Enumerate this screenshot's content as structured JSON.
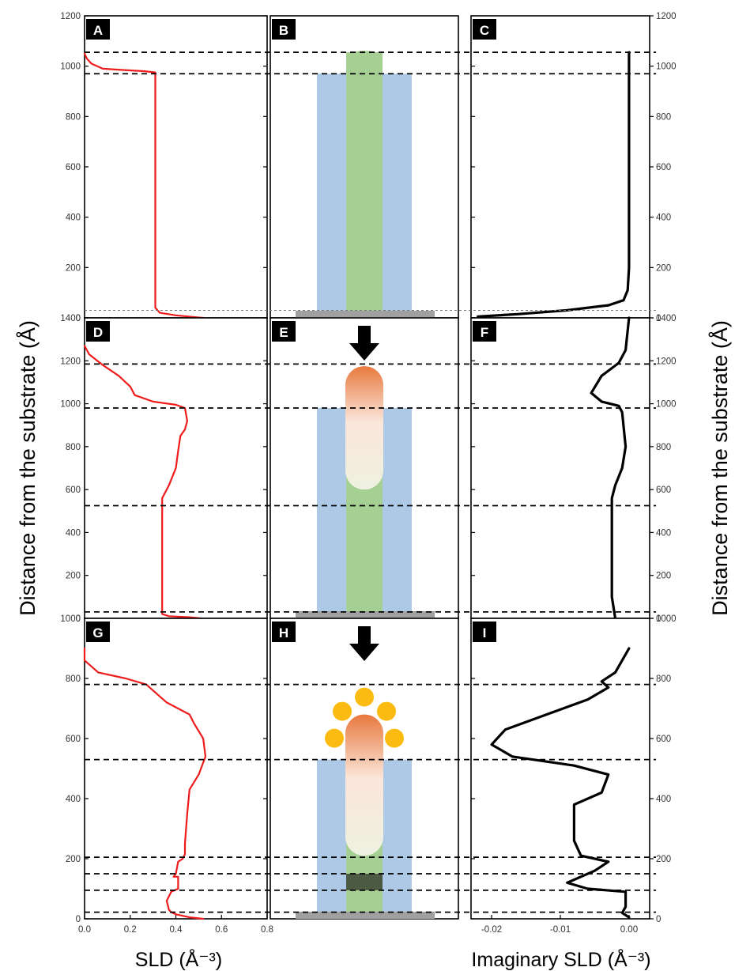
{
  "y_axis_title": "Distance from the substrate (Å)",
  "sld_axis_title": "SLD (Å⁻³)",
  "imag_sld_axis_title": "Imaginary SLD (Å⁻³)",
  "colors": {
    "sld_curve": "#ee1c1c",
    "imag_curve": "#000000",
    "membrane": "#adc9e6",
    "helix": "#a6cf94",
    "substrate": "#a0a0a0",
    "gold": "#fbbb10",
    "dark_band": "#4d5a43"
  },
  "icons": [
    "down-arrow-icon",
    "gold-nanoparticle-icon"
  ],
  "chart_data": [
    {
      "panel": "A",
      "type": "line",
      "ylim": [
        0,
        1200
      ],
      "xlim": [
        0,
        0.8
      ],
      "yticks": [
        "1200",
        "1000",
        "800",
        "600",
        "400",
        "200",
        "0"
      ],
      "dashed_y": [
        1055,
        970,
        30
      ],
      "series": [
        {
          "x": [
            0.0,
            0.01,
            0.03,
            0.08,
            0.16,
            0.26,
            0.31,
            0.31,
            0.31,
            0.33,
            0.4,
            0.52
          ],
          "y": [
            1050,
            1030,
            1010,
            990,
            985,
            980,
            975,
            500,
            40,
            20,
            10,
            0
          ]
        }
      ]
    },
    {
      "panel": "B",
      "type": "diagram",
      "ylim": [
        0,
        1200
      ],
      "dashed_y": [
        1055,
        970,
        30
      ],
      "membrane_top": 970,
      "helix_top": 1055,
      "has_probe": false,
      "has_arrow": false,
      "has_gold": false
    },
    {
      "panel": "C",
      "type": "line",
      "ylim": [
        0,
        1200
      ],
      "xlim": [
        -0.023,
        0.003
      ],
      "yticks": [
        "1200",
        "1000",
        "800",
        "600",
        "400",
        "200",
        "0"
      ],
      "dashed_y": [
        1055,
        970,
        30
      ],
      "series": [
        {
          "x": [
            0.0,
            0.0,
            -0.0002,
            -0.0008,
            -0.003,
            -0.009,
            -0.016,
            -0.022
          ],
          "y": [
            1055,
            200,
            110,
            70,
            50,
            30,
            15,
            5
          ]
        }
      ]
    },
    {
      "panel": "D",
      "type": "line",
      "ylim": [
        0,
        1400
      ],
      "xlim": [
        0,
        0.8
      ],
      "yticks": [
        "1400",
        "1200",
        "1000",
        "800",
        "600",
        "400",
        "200",
        "0"
      ],
      "dashed_y": [
        1185,
        980,
        525,
        30
      ],
      "series": [
        {
          "x": [
            0.0,
            0.02,
            0.08,
            0.15,
            0.2,
            0.22,
            0.3,
            0.4,
            0.44,
            0.45,
            0.44,
            0.42,
            0.41,
            0.4,
            0.37,
            0.34,
            0.34,
            0.34,
            0.37,
            0.46,
            0.51
          ],
          "y": [
            1270,
            1230,
            1180,
            1130,
            1080,
            1040,
            1010,
            995,
            980,
            920,
            880,
            850,
            780,
            700,
            620,
            560,
            400,
            20,
            10,
            5,
            0
          ]
        }
      ]
    },
    {
      "panel": "E",
      "type": "diagram",
      "ylim": [
        0,
        1400
      ],
      "dashed_y": [
        1185,
        980,
        525,
        30
      ],
      "membrane_top": 980,
      "helix_top": 980,
      "has_probe": true,
      "probe_top": 1175,
      "probe_bottom": 600,
      "has_arrow": true,
      "has_gold": false
    },
    {
      "panel": "F",
      "type": "line",
      "ylim": [
        0,
        1400
      ],
      "xlim": [
        -0.023,
        0.003
      ],
      "yticks": [
        "1400",
        "1200",
        "1000",
        "800",
        "600",
        "400",
        "200",
        "0"
      ],
      "dashed_y": [
        1185,
        980,
        525,
        30
      ],
      "series": [
        {
          "x": [
            0.0,
            -0.0005,
            -0.0015,
            -0.004,
            -0.0055,
            -0.004,
            -0.0015,
            -0.001,
            -0.0005,
            -0.001,
            -0.002,
            -0.0025,
            -0.0025,
            -0.0025,
            -0.002
          ],
          "y": [
            1400,
            1250,
            1190,
            1130,
            1050,
            1010,
            990,
            960,
            800,
            700,
            620,
            560,
            400,
            100,
            0
          ]
        }
      ]
    },
    {
      "panel": "G",
      "type": "line",
      "ylim": [
        0,
        1000
      ],
      "xlim": [
        0,
        0.8
      ],
      "yticks": [
        "1000",
        "800",
        "600",
        "400",
        "200",
        "0"
      ],
      "xticks": [
        "0.0",
        "0.2",
        "0.4",
        "0.6",
        "0.8"
      ],
      "dashed_y": [
        780,
        530,
        205,
        150,
        95,
        22
      ],
      "series": [
        {
          "x": [
            0.0,
            0.0,
            0.06,
            0.18,
            0.27,
            0.36,
            0.46,
            0.48,
            0.52,
            0.53,
            0.5,
            0.46,
            0.45,
            0.44,
            0.44,
            0.43,
            0.41,
            0.4,
            0.39,
            0.41,
            0.41,
            0.38,
            0.36,
            0.37,
            0.38,
            0.4,
            0.46,
            0.52
          ],
          "y": [
            900,
            860,
            820,
            800,
            780,
            720,
            680,
            650,
            600,
            540,
            480,
            430,
            350,
            250,
            215,
            200,
            190,
            150,
            140,
            140,
            100,
            90,
            60,
            30,
            22,
            15,
            5,
            0
          ]
        }
      ]
    },
    {
      "panel": "H",
      "type": "diagram",
      "ylim": [
        0,
        1000
      ],
      "dashed_y": [
        780,
        530,
        205,
        150,
        95,
        22
      ],
      "membrane_top": 530,
      "helix_top": 530,
      "has_probe": true,
      "probe_top": 680,
      "probe_bottom": 210,
      "has_arrow": true,
      "has_gold": true,
      "dark_band": [
        95,
        150
      ]
    },
    {
      "panel": "I",
      "type": "line",
      "ylim": [
        0,
        1000
      ],
      "xlim": [
        -0.023,
        0.003
      ],
      "yticks": [
        "1000",
        "800",
        "600",
        "400",
        "200",
        "0"
      ],
      "xticks": [
        "-0.02",
        "-0.01",
        "0.00"
      ],
      "dashed_y": [
        780,
        530,
        205,
        150,
        95,
        22
      ],
      "series": [
        {
          "x": [
            0.0,
            -0.002,
            -0.004,
            -0.003,
            -0.006,
            -0.012,
            -0.018,
            -0.02,
            -0.017,
            -0.008,
            -0.003,
            -0.004,
            -0.008,
            -0.008,
            -0.007,
            -0.003,
            -0.005,
            -0.009,
            -0.006,
            -0.0005,
            -0.0005,
            -0.001,
            0.0
          ],
          "y": [
            900,
            820,
            790,
            770,
            730,
            680,
            630,
            580,
            540,
            510,
            480,
            420,
            380,
            260,
            210,
            190,
            160,
            120,
            100,
            90,
            40,
            20,
            5
          ]
        }
      ]
    }
  ]
}
